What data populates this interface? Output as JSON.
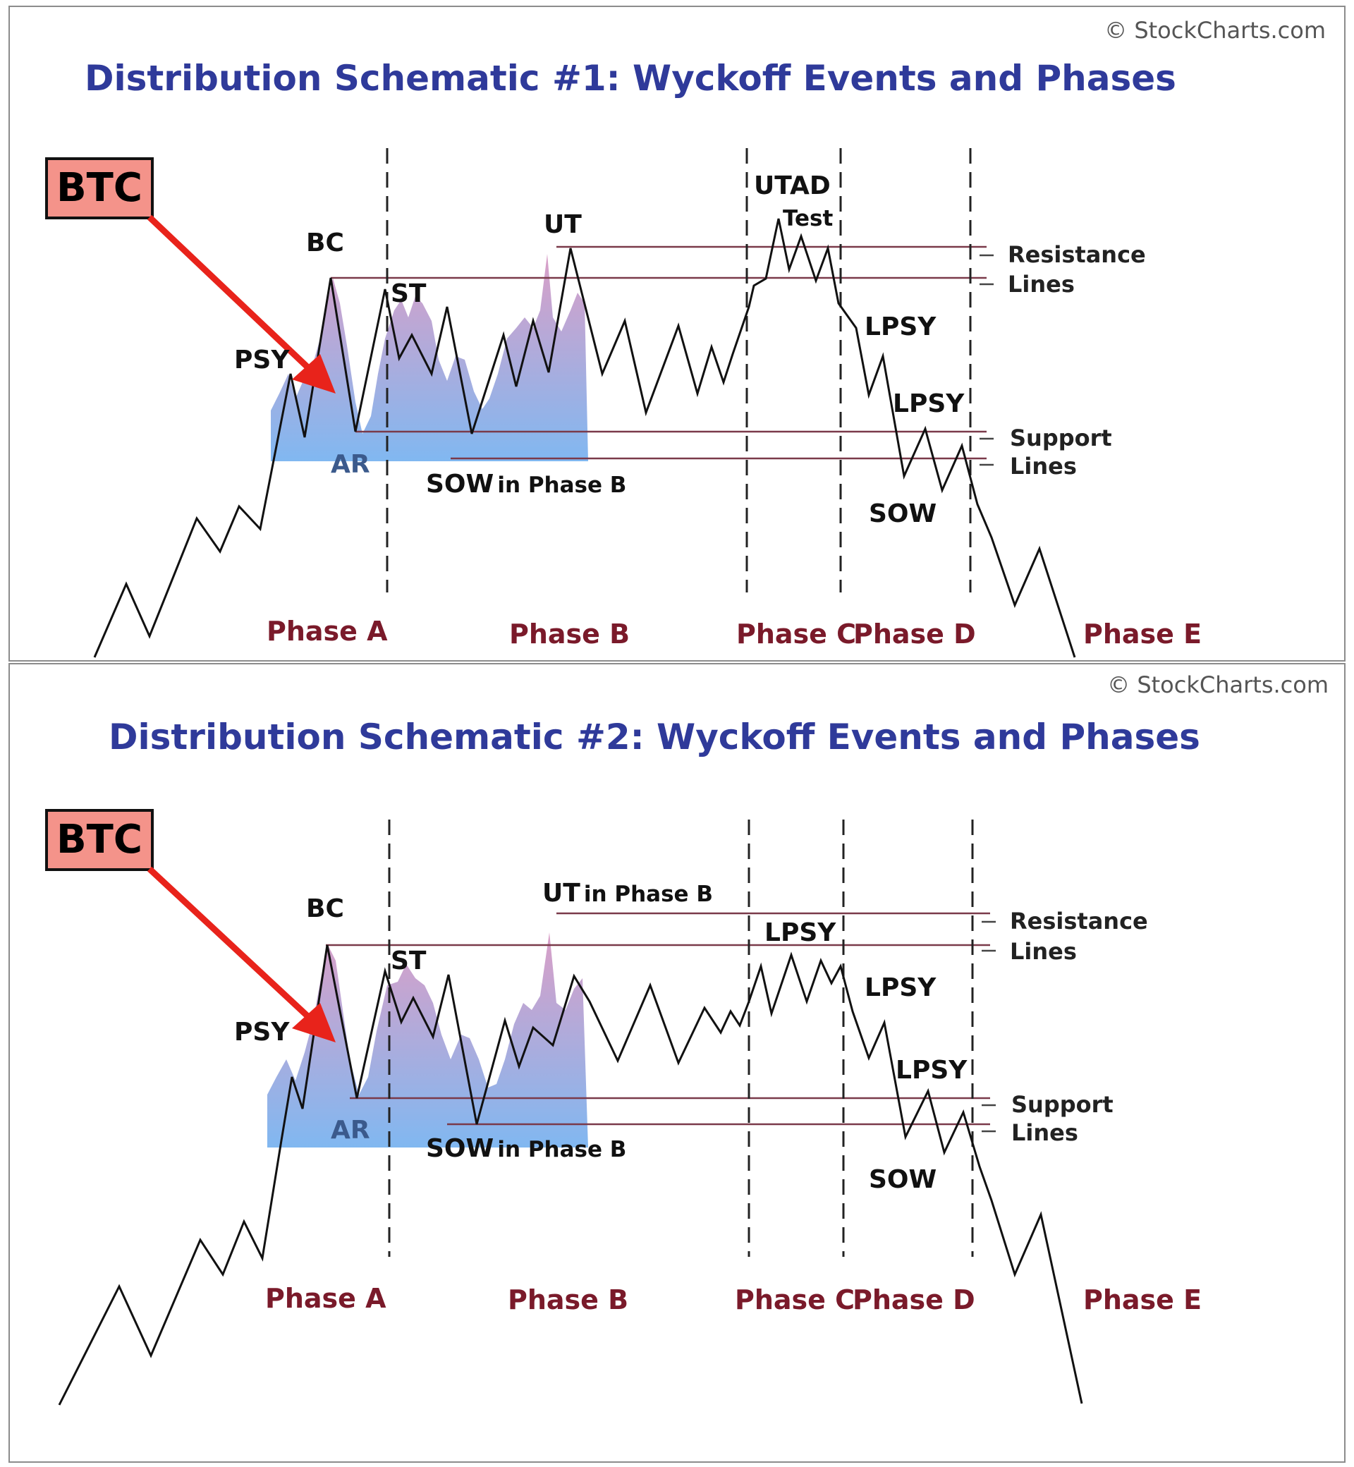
{
  "credit": "© StockCharts.com",
  "schematics": [
    {
      "title": "Distribution Schematic #1: Wyckoff Events and Phases",
      "badge": "BTC",
      "events": {
        "psy": "PSY",
        "bc": "BC",
        "ar": "AR",
        "st": "ST",
        "sow_b": "SOW",
        "sow_b_suffix": "in Phase B",
        "ut": "UT",
        "ut_suffix": "",
        "utad": "UTAD",
        "test": "Test",
        "lpsy_c": "",
        "lpsy1": "LPSY",
        "lpsy2": "LPSY",
        "sow": "SOW"
      },
      "resistance": [
        "Resistance",
        "Lines"
      ],
      "support": [
        "Support",
        "Lines"
      ],
      "phases": [
        "Phase A",
        "Phase B",
        "Phase C",
        "Phase D",
        "Phase E"
      ]
    },
    {
      "title": "Distribution Schematic #2: Wyckoff Events and Phases",
      "badge": "BTC",
      "events": {
        "psy": "PSY",
        "bc": "BC",
        "ar": "AR",
        "st": "ST",
        "sow_b": "SOW",
        "sow_b_suffix": "in Phase B",
        "ut": "UT",
        "ut_suffix": "in Phase B",
        "utad": "",
        "test": "",
        "lpsy_c": "LPSY",
        "lpsy1": "LPSY",
        "lpsy2": "LPSY",
        "sow": "SOW"
      },
      "resistance": [
        "Resistance",
        "Lines"
      ],
      "support": [
        "Support",
        "Lines"
      ],
      "phases": [
        "Phase A",
        "Phase B",
        "Phase C",
        "Phase D",
        "Phase E"
      ]
    }
  ],
  "colors": {
    "title": "#2f3a9a",
    "phase_label": "#7a1a2a",
    "horizontal_line": "#7a3a4a",
    "btc_badge": "#f4938a",
    "btc_arrow": "#e8231b",
    "btc_fill_top": "#d89ac4",
    "btc_fill_bottom": "#7ab4f0"
  }
}
